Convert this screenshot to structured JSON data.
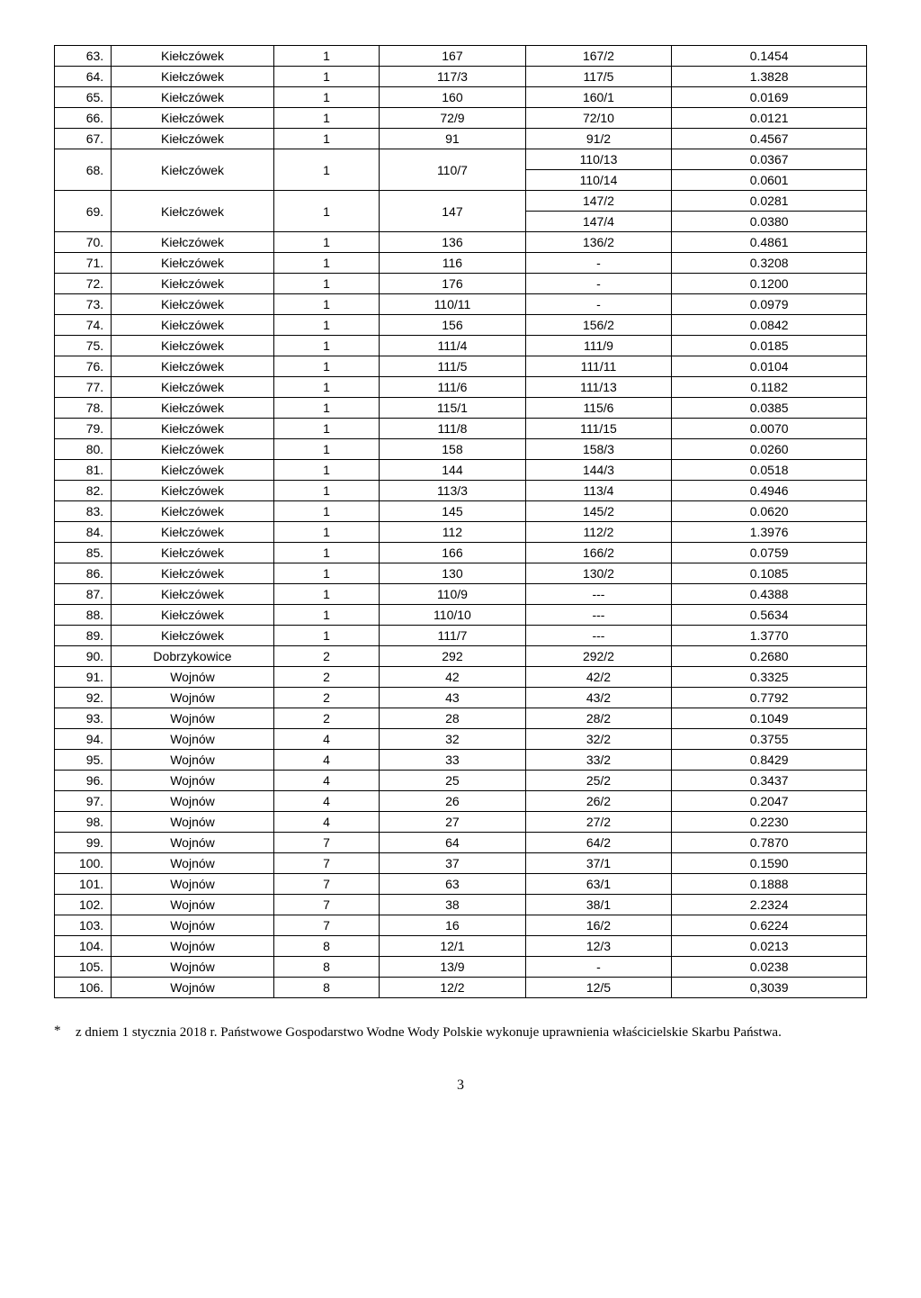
{
  "table": {
    "columns": [
      "num",
      "name",
      "c3",
      "c4",
      "c5",
      "c6"
    ],
    "rows": [
      [
        "63.",
        "Kiełczówek",
        "1",
        "167",
        "167/2",
        "0.1454"
      ],
      [
        "64.",
        "Kiełczówek",
        "1",
        "117/3",
        "117/5",
        "1.3828"
      ],
      [
        "65.",
        "Kiełczówek",
        "1",
        "160",
        "160/1",
        "0.0169"
      ],
      [
        "66.",
        "Kiełczówek",
        "1",
        "72/9",
        "72/10",
        "0.0121"
      ],
      [
        "67.",
        "Kiełczówek",
        "1",
        "91",
        "91/2",
        "0.4567"
      ],
      [
        "68.",
        "Kiełczówek",
        "1",
        "110/7",
        "110/13",
        "0.0367"
      ],
      [
        "",
        "",
        "",
        "",
        "110/14",
        "0.0601"
      ],
      [
        "69.",
        "Kiełczówek",
        "1",
        "147",
        "147/2",
        "0.0281"
      ],
      [
        "",
        "",
        "",
        "",
        "147/4",
        "0.0380"
      ],
      [
        "70.",
        "Kiełczówek",
        "1",
        "136",
        "136/2",
        "0.4861"
      ],
      [
        "71.",
        "Kiełczówek",
        "1",
        "116",
        "-",
        "0.3208"
      ],
      [
        "72.",
        "Kiełczówek",
        "1",
        "176",
        "-",
        "0.1200"
      ],
      [
        "73.",
        "Kiełczówek",
        "1",
        "110/11",
        "-",
        "0.0979"
      ],
      [
        "74.",
        "Kiełczówek",
        "1",
        "156",
        "156/2",
        "0.0842"
      ],
      [
        "75.",
        "Kiełczówek",
        "1",
        "111/4",
        "111/9",
        "0.0185"
      ],
      [
        "76.",
        "Kiełczówek",
        "1",
        "111/5",
        "111/11",
        "0.0104"
      ],
      [
        "77.",
        "Kiełczówek",
        "1",
        "111/6",
        "111/13",
        "0.1182"
      ],
      [
        "78.",
        "Kiełczówek",
        "1",
        "115/1",
        "115/6",
        "0.0385"
      ],
      [
        "79.",
        "Kiełczówek",
        "1",
        "111/8",
        "111/15",
        "0.0070"
      ],
      [
        "80.",
        "Kiełczówek",
        "1",
        "158",
        "158/3",
        "0.0260"
      ],
      [
        "81.",
        "Kiełczówek",
        "1",
        "144",
        "144/3",
        "0.0518"
      ],
      [
        "82.",
        "Kiełczówek",
        "1",
        "113/3",
        "113/4",
        "0.4946"
      ],
      [
        "83.",
        "Kiełczówek",
        "1",
        "145",
        "145/2",
        "0.0620"
      ],
      [
        "84.",
        "Kiełczówek",
        "1",
        "112",
        "112/2",
        "1.3976"
      ],
      [
        "85.",
        "Kiełczówek",
        "1",
        "166",
        "166/2",
        "0.0759"
      ],
      [
        "86.",
        "Kiełczówek",
        "1",
        "130",
        "130/2",
        "0.1085"
      ],
      [
        "87.",
        "Kiełczówek",
        "1",
        "110/9",
        "---",
        "0.4388"
      ],
      [
        "88.",
        "Kiełczówek",
        "1",
        "110/10",
        "---",
        "0.5634"
      ],
      [
        "89.",
        "Kiełczówek",
        "1",
        "111/7",
        "---",
        "1.3770"
      ],
      [
        "90.",
        "Dobrzykowice",
        "2",
        "292",
        "292/2",
        "0.2680"
      ],
      [
        "91.",
        "Wojnów",
        "2",
        "42",
        "42/2",
        "0.3325"
      ],
      [
        "92.",
        "Wojnów",
        "2",
        "43",
        "43/2",
        "0.7792"
      ],
      [
        "93.",
        "Wojnów",
        "2",
        "28",
        "28/2",
        "0.1049"
      ],
      [
        "94.",
        "Wojnów",
        "4",
        "32",
        "32/2",
        "0.3755"
      ],
      [
        "95.",
        "Wojnów",
        "4",
        "33",
        "33/2",
        "0.8429"
      ],
      [
        "96.",
        "Wojnów",
        "4",
        "25",
        "25/2",
        "0.3437"
      ],
      [
        "97.",
        "Wojnów",
        "4",
        "26",
        "26/2",
        "0.2047"
      ],
      [
        "98.",
        "Wojnów",
        "4",
        "27",
        "27/2",
        "0.2230"
      ],
      [
        "99.",
        "Wojnów",
        "7",
        "64",
        "64/2",
        "0.7870"
      ],
      [
        "100.",
        "Wojnów",
        "7",
        "37",
        "37/1",
        "0.1590"
      ],
      [
        "101.",
        "Wojnów",
        "7",
        "63",
        "63/1",
        "0.1888"
      ],
      [
        "102.",
        "Wojnów",
        "7",
        "38",
        "38/1",
        "2.2324"
      ],
      [
        "103.",
        "Wojnów",
        "7",
        "16",
        "16/2",
        "0.6224"
      ],
      [
        "104.",
        "Wojnów",
        "8",
        "12/1",
        "12/3",
        "0.0213"
      ],
      [
        "105.",
        "Wojnów",
        "8",
        "13/9",
        "-",
        "0.0238"
      ],
      [
        "106.",
        "Wojnów",
        "8",
        "12/2",
        "12/5",
        "0,3039"
      ]
    ],
    "merges": [
      {
        "row": 5,
        "cols": [
          0,
          1,
          2,
          3
        ],
        "span": 2
      },
      {
        "row": 7,
        "cols": [
          0,
          1,
          2,
          3
        ],
        "span": 2
      }
    ]
  },
  "footnote": {
    "marker": "*",
    "text": "z dniem 1 stycznia 2018 r. Państwowe Gospodarstwo Wodne Wody Polskie wykonuje uprawnienia właścicielskie Skarbu Państwa."
  },
  "page_number": "3"
}
